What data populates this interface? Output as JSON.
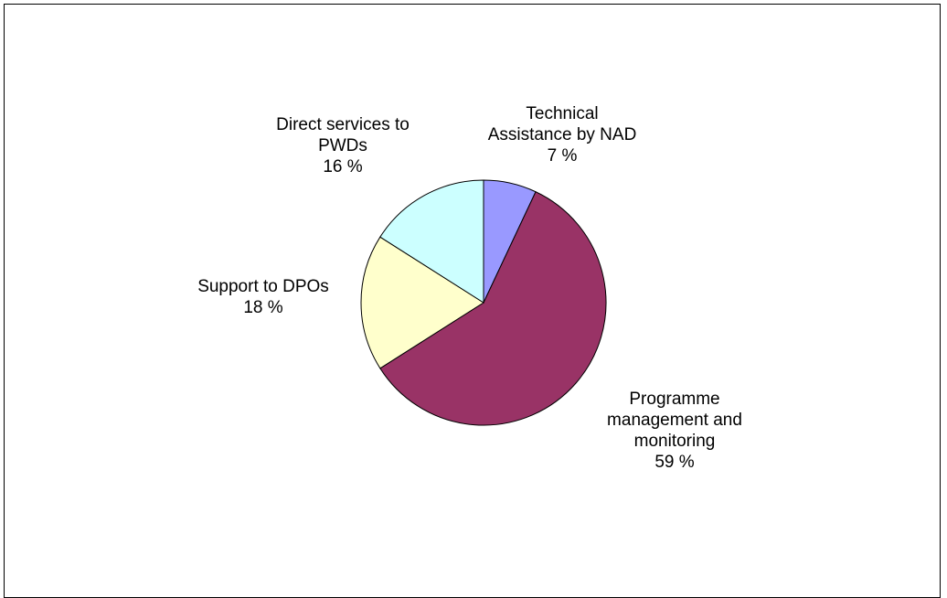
{
  "chart_data": {
    "type": "pie",
    "title": "",
    "slices": [
      {
        "label_lines": [
          "Technical",
          "Assistance by NAD"
        ],
        "pct_text": "7 %",
        "value": 7,
        "color": "#9999ff"
      },
      {
        "label_lines": [
          "Programme",
          "management and",
          "monitoring"
        ],
        "pct_text": "59 %",
        "value": 59,
        "color": "#993366"
      },
      {
        "label_lines": [
          "Support to DPOs"
        ],
        "pct_text": "18 %",
        "value": 18,
        "color": "#ffffcc"
      },
      {
        "label_lines": [
          "Direct services to",
          "PWDs"
        ],
        "pct_text": "16 %",
        "value": 16,
        "color": "#ccffff"
      }
    ],
    "start_angle": "12 o'clock",
    "direction": "clockwise",
    "legend": "none"
  }
}
